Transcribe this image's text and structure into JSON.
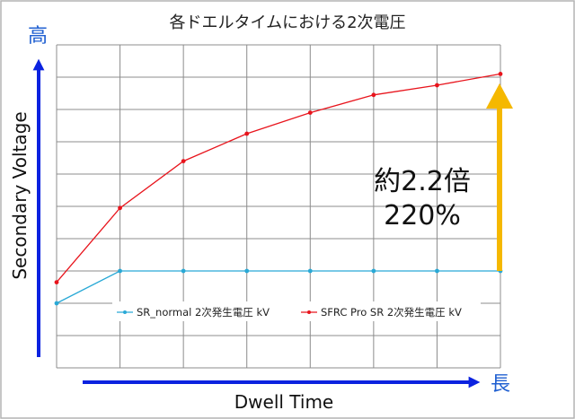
{
  "chart_data": {
    "type": "line",
    "title": "各ドエルタイムにおける2次電圧",
    "xlabel": "Dwell Time",
    "ylabel": "Secondary Voltage",
    "y_high_label": "高",
    "x_long_label": "長",
    "x": [
      0,
      1,
      2,
      3,
      4,
      5,
      6,
      7
    ],
    "xlim": [
      0,
      7
    ],
    "ylim": [
      0,
      10
    ],
    "grid": true,
    "legend_position": "lower-center",
    "series": [
      {
        "name": "SR_normal 2次発生電圧 kV",
        "color": "#29a9d6",
        "values": [
          2.0,
          3.0,
          3.0,
          3.0,
          3.0,
          3.0,
          3.0,
          3.0
        ]
      },
      {
        "name": "SFRC Pro SR 2次発生電圧 kV",
        "color": "#e8141c",
        "values": [
          2.65,
          4.95,
          6.4,
          7.25,
          7.9,
          8.45,
          8.75,
          9.1
        ]
      }
    ],
    "annotation": {
      "line1": "約2.2倍",
      "line2": "220%",
      "arrow_color": "#f5b800"
    },
    "axis_arrow_color": "#0b22e0"
  }
}
